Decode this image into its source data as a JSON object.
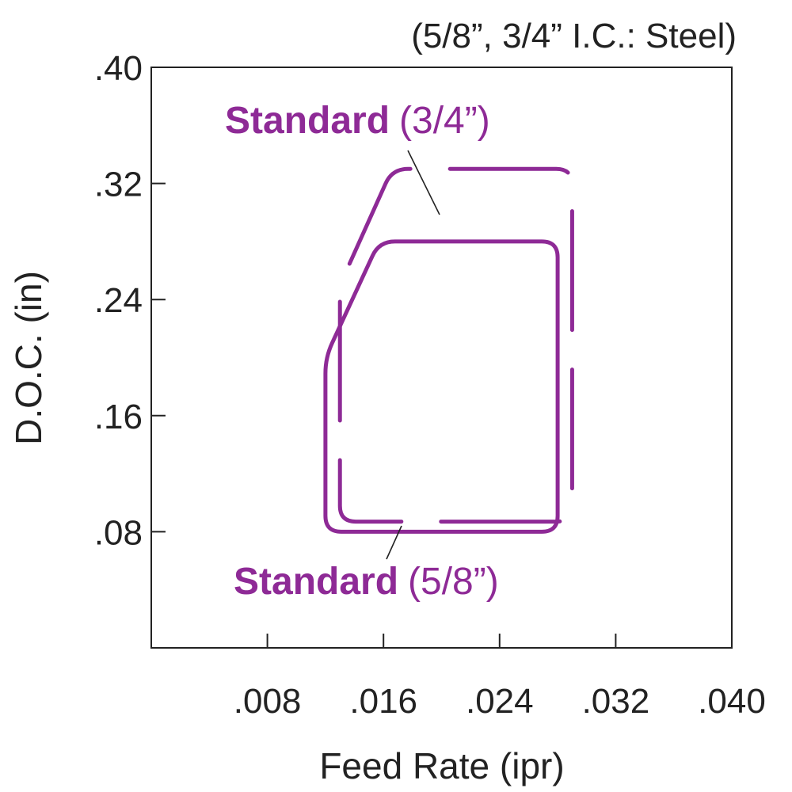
{
  "chart_data": {
    "type": "area",
    "title": "(5/8”, 3/4” I.C.: Steel)",
    "xlabel": "Feed Rate (ipr)",
    "ylabel": "D.O.C. (in)",
    "xlim": [
      0,
      0.04
    ],
    "ylim": [
      0,
      0.4
    ],
    "xticks": [
      ".008",
      ".016",
      ".024",
      ".032",
      ".040"
    ],
    "xtick_values": [
      0.008,
      0.016,
      0.024,
      0.032,
      0.04
    ],
    "yticks": [
      ".40",
      ".32",
      ".24",
      ".16",
      ".08"
    ],
    "ytick_values": [
      0.4,
      0.32,
      0.24,
      0.16,
      0.08
    ],
    "grid": false,
    "color": "#8e2a96",
    "series": [
      {
        "name_bold": "Standard",
        "name_rest": "(3/4”)",
        "line_style": "dashed",
        "points": [
          [
            0.013,
            0.087
          ],
          [
            0.029,
            0.087
          ],
          [
            0.029,
            0.33
          ],
          [
            0.0166,
            0.33
          ],
          [
            0.013,
            0.25
          ]
        ]
      },
      {
        "name_bold": "Standard",
        "name_rest": "(5/8”)",
        "line_style": "solid",
        "points": [
          [
            0.012,
            0.08
          ],
          [
            0.028,
            0.08
          ],
          [
            0.028,
            0.28
          ],
          [
            0.0157,
            0.28
          ],
          [
            0.012,
            0.2
          ]
        ]
      }
    ]
  }
}
